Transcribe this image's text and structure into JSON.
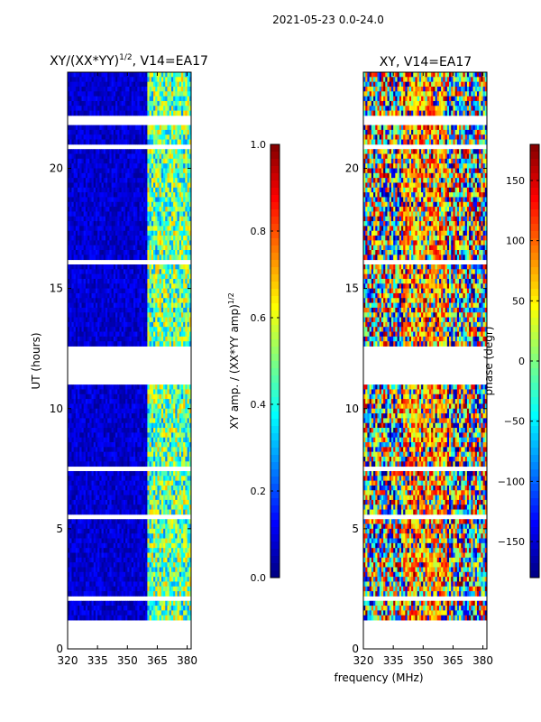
{
  "suptitle": "2021-05-23 0.0-24.0",
  "colors": {
    "frame": "#000000",
    "gap": "#ffffff",
    "bg_low": "#00008f"
  },
  "chart_data": [
    {
      "type": "heatmap",
      "title_main": "XY/(XX*YY)",
      "title_sup": "1/2",
      "title_tail": ", V14=EA17",
      "ylabel": "UT (hours)",
      "xlim": [
        320,
        382
      ],
      "ylim": [
        0,
        24
      ],
      "xticks": [
        320,
        335,
        350,
        365,
        380
      ],
      "yticks": [
        0,
        5,
        10,
        15,
        20
      ],
      "colorbar": {
        "label_main": "XY amp. / (XX*YY amp)",
        "label_sup": "1/2",
        "range": [
          0,
          1
        ],
        "ticks": [
          "0.0",
          "0.2",
          "0.4",
          "0.6",
          "0.8",
          "1.0"
        ]
      },
      "gaps_hours": [
        [
          0.1,
          1.2
        ],
        [
          11.1,
          12.6
        ],
        [
          2.0,
          2.25
        ],
        [
          5.4,
          5.6
        ],
        [
          7.4,
          7.6
        ],
        [
          15.9,
          16.1
        ],
        [
          20.8,
          20.9
        ],
        [
          21.9,
          22.1
        ]
      ],
      "bright_band_mhz": [
        360,
        382
      ]
    },
    {
      "type": "heatmap",
      "title_main": "XY, V14=EA17",
      "xlabel": "frequency (MHz)",
      "xlim": [
        320,
        382
      ],
      "ylim": [
        0,
        24
      ],
      "xticks": [
        320,
        335,
        350,
        365,
        380
      ],
      "yticks": [
        0,
        5,
        10,
        15,
        20
      ],
      "colorbar": {
        "label_main": "phase (degr)",
        "range": [
          -180,
          180
        ],
        "ticks": [
          "−150",
          "−100",
          "−50",
          "0",
          "50",
          "100",
          "150"
        ],
        "tick_values": [
          -150,
          -100,
          -50,
          0,
          50,
          100,
          150
        ]
      },
      "gaps_hours": [
        [
          0.1,
          1.2
        ],
        [
          11.1,
          12.6
        ],
        [
          2.0,
          2.25
        ],
        [
          5.4,
          5.6
        ],
        [
          7.4,
          7.6
        ],
        [
          15.9,
          16.1
        ],
        [
          20.8,
          20.9
        ],
        [
          21.9,
          22.1
        ]
      ]
    }
  ]
}
